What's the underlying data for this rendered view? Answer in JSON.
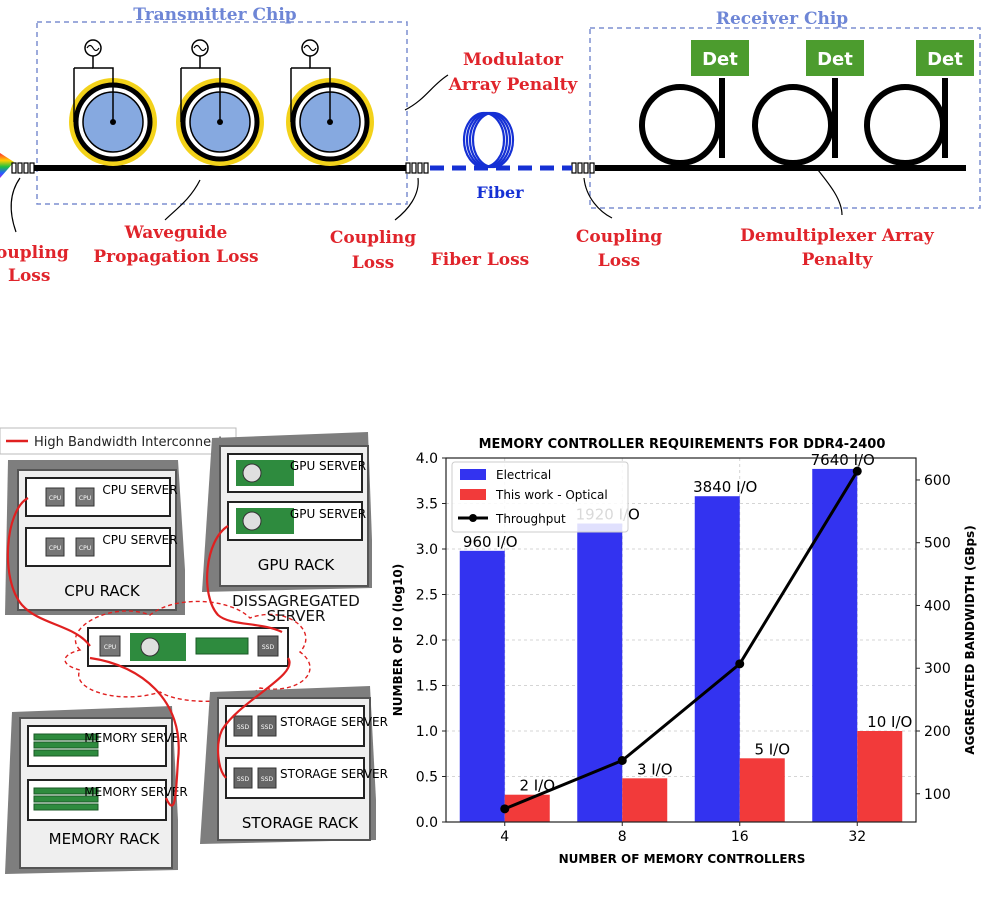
{
  "photonic_link": {
    "transmitter_title": "Transmitter Chip",
    "receiver_title": "Receiver Chip",
    "fiber_label": "Fiber",
    "detector_label": "Det",
    "loss_labels": {
      "coupling_loss_input": [
        "oupling",
        "Loss"
      ],
      "waveguide_propagation_loss": [
        "Waveguide",
        "Propagation Loss"
      ],
      "coupling_loss_tx_out": [
        "Coupling",
        "Loss"
      ],
      "fiber_loss": "Fiber Loss",
      "coupling_loss_rx_in": [
        "Coupling",
        "Loss"
      ],
      "modulator_array_penalty": [
        "Modulator",
        "Array Penalty"
      ],
      "demultiplexer_array_penalty": [
        "Demultiplexer Array",
        "Penalty"
      ]
    },
    "colors": {
      "label_red": "#e0242b",
      "chip_blue": "#6e86d6",
      "ring_gold": "#f3d21a",
      "ring_fill": "#86a9e0",
      "fiber_blue": "#1530d4",
      "det_green": "#4c9c2e"
    }
  },
  "server_diagram": {
    "legend": "High Bandwidth Interconnect",
    "racks": {
      "cpu": {
        "label": "CPU RACK",
        "servers": [
          "CPU SERVER",
          "CPU SERVER"
        ],
        "chip_label": "CPU"
      },
      "gpu": {
        "label": "GPU RACK",
        "servers": [
          "GPU SERVER",
          "GPU SERVER"
        ]
      },
      "memory": {
        "label": "MEMORY RACK",
        "servers": [
          "MEMORY SERVER",
          "MEMORY SERVER"
        ]
      },
      "storage": {
        "label": "STORAGE RACK",
        "servers": [
          "STORAGE SERVER",
          "STORAGE SERVER"
        ],
        "chip_label": "SSD"
      }
    },
    "disaggregated": {
      "label": "DISSAGREGATED SERVER",
      "cpu_label": "CPU",
      "ssd_label": "SSD"
    },
    "colors": {
      "interconnect": "#e02020",
      "rack_grey": "#8e8e8e",
      "board_green": "#2e8b3e"
    }
  },
  "chart_data": {
    "type": "bar",
    "title": "MEMORY CONTROLLER REQUIREMENTS FOR DDR4-2400",
    "xlabel": "NUMBER OF MEMORY CONTROLLERS",
    "ylabel": "NUMBER OF IO (log10)",
    "y2label": "AGGREGATED BANDWIDTH (GBps)",
    "categories": [
      "4",
      "8",
      "16",
      "32"
    ],
    "ylim": [
      0,
      4.0
    ],
    "yticks": [
      "0.0",
      "0.5",
      "1.0",
      "1.5",
      "2.0",
      "2.5",
      "3.0",
      "3.5",
      "4.0"
    ],
    "y2lim": [
      55,
      635
    ],
    "y2ticks": [
      "100",
      "200",
      "300",
      "400",
      "500",
      "600"
    ],
    "series": [
      {
        "name": "Electrical",
        "color": "#3333f0",
        "values": [
          2.98,
          3.28,
          3.58,
          3.88
        ],
        "labels": [
          "960 I/O",
          "1920 I/O",
          "3840 I/O",
          "7640 I/O"
        ]
      },
      {
        "name": "This work - Optical",
        "color": "#f23a3a",
        "values": [
          0.3,
          0.48,
          0.7,
          1.0
        ],
        "labels": [
          "2 I/O",
          "3 I/O",
          "5 I/O",
          "10 I/O"
        ]
      }
    ],
    "line": {
      "name": "Throughput",
      "color": "#000000",
      "values": [
        76,
        153,
        307,
        614
      ]
    },
    "legend": "top-left",
    "grid": true
  }
}
